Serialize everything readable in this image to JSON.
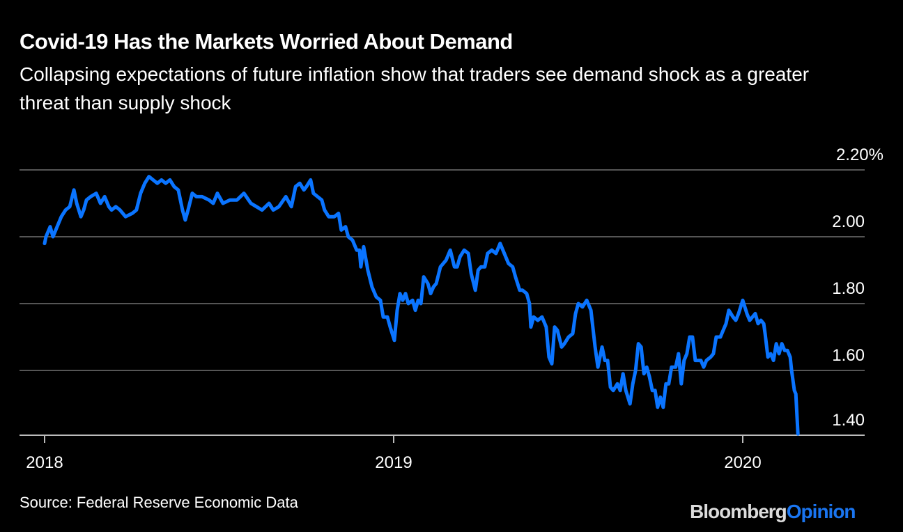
{
  "title": "Covid-19 Has the Markets Worried About Demand",
  "subtitle": "Collapsing expectations of future inflation show that traders see demand shock as a greater threat than supply shock",
  "source": "Source: Federal Reserve Economic Data",
  "logo": {
    "part1": "Bloomberg",
    "part2": "Opinion"
  },
  "colors": {
    "line": "#0a74ff",
    "grid": "#555555",
    "background": "#000000",
    "logo_accent": "#1a75f0"
  },
  "chart_data": {
    "type": "line",
    "title": "Covid-19 Has the Markets Worried About Demand",
    "xlabel": "",
    "ylabel": "",
    "xlim": [
      2017.93,
      2020.35
    ],
    "ylim": [
      1.4,
      2.2
    ],
    "grid": true,
    "legend": "none",
    "x_ticks": [
      {
        "value": 2018,
        "label": "2018"
      },
      {
        "value": 2019,
        "label": "2019"
      },
      {
        "value": 2020,
        "label": "2020"
      }
    ],
    "y_ticks": [
      {
        "value": 2.2,
        "label": "2.20%"
      },
      {
        "value": 2.0,
        "label": "2.00"
      },
      {
        "value": 1.8,
        "label": "1.80"
      },
      {
        "value": 1.6,
        "label": "1.60"
      },
      {
        "value": 1.4,
        "label": "1.40"
      }
    ],
    "series": [
      {
        "x": [
          2018.0,
          2018.004,
          2018.016,
          2018.024,
          2018.036,
          2018.048,
          2018.06,
          2018.072,
          2018.084,
          2018.092,
          2018.104,
          2018.112,
          2018.12,
          2018.132,
          2018.148,
          2018.16,
          2018.172,
          2018.184,
          2018.192,
          2018.204,
          2018.216,
          2018.232,
          2018.251,
          2018.263,
          2018.275,
          2018.287,
          2018.299,
          2018.311,
          2018.323,
          2018.335,
          2018.347,
          2018.359,
          2018.371,
          2018.383,
          2018.395,
          2018.403,
          2018.411,
          2018.423,
          2018.435,
          2018.451,
          2018.471,
          2018.483,
          2018.495,
          2018.511,
          2018.531,
          2018.551,
          2018.571,
          2018.591,
          2018.607,
          2018.623,
          2018.643,
          2018.655,
          2018.671,
          2018.691,
          2018.707,
          2018.719,
          2018.731,
          2018.743,
          2018.75,
          2018.762,
          2018.77,
          2018.782,
          2018.794,
          2018.802,
          2018.814,
          2018.83,
          2018.842,
          2018.85,
          2018.862,
          2018.87,
          2018.882,
          2018.894,
          2018.902,
          2018.906,
          2018.914,
          2018.926,
          2018.938,
          2018.95,
          2018.962,
          2018.97,
          2018.982,
          2018.99,
          2019.002,
          2019.01,
          2019.018,
          2019.026,
          2019.034,
          2019.042,
          2019.054,
          2019.062,
          2019.07,
          2019.078,
          2019.086,
          2019.098,
          2019.106,
          2019.114,
          2019.122,
          2019.134,
          2019.15,
          2019.162,
          2019.174,
          2019.182,
          2019.19,
          2019.202,
          2019.214,
          2019.222,
          2019.234,
          2019.242,
          2019.25,
          2019.261,
          2019.269,
          2019.281,
          2019.293,
          2019.305,
          2019.317,
          2019.329,
          2019.341,
          2019.349,
          2019.361,
          2019.369,
          2019.381,
          2019.389,
          2019.393,
          2019.401,
          2019.413,
          2019.425,
          2019.437,
          2019.445,
          2019.453,
          2019.461,
          2019.469,
          2019.481,
          2019.489,
          2019.501,
          2019.513,
          2019.521,
          2019.529,
          2019.541,
          2019.553,
          2019.565,
          2019.577,
          2019.585,
          2019.597,
          2019.605,
          2019.613,
          2019.621,
          2019.629,
          2019.641,
          2019.649,
          2019.657,
          2019.665,
          2019.677,
          2019.685,
          2019.693,
          2019.701,
          2019.709,
          2019.717,
          2019.725,
          2019.733,
          2019.741,
          2019.749,
          2019.756,
          2019.764,
          2019.772,
          2019.78,
          2019.788,
          2019.796,
          2019.808,
          2019.816,
          2019.824,
          2019.832,
          2019.84,
          2019.848,
          2019.856,
          2019.864,
          2019.872,
          2019.88,
          2019.888,
          2019.896,
          2019.908,
          2019.916,
          2019.924,
          2019.936,
          2019.944,
          2019.952,
          2019.96,
          2019.972,
          2019.98,
          2019.988,
          2020.0,
          2020.012,
          2020.02,
          2020.028,
          2020.036,
          2020.044,
          2020.052,
          2020.06,
          2020.064,
          2020.072,
          2020.08,
          2020.088,
          2020.096,
          2020.104,
          2020.112,
          2020.12,
          2020.128,
          2020.136,
          2020.14,
          2020.148,
          2020.152,
          2020.158
        ],
        "y": [
          1.98,
          2.0,
          2.03,
          2.0,
          2.03,
          2.06,
          2.08,
          2.09,
          2.14,
          2.1,
          2.06,
          2.08,
          2.11,
          2.12,
          2.13,
          2.1,
          2.12,
          2.09,
          2.08,
          2.09,
          2.08,
          2.06,
          2.07,
          2.08,
          2.13,
          2.16,
          2.18,
          2.17,
          2.16,
          2.17,
          2.16,
          2.17,
          2.15,
          2.14,
          2.08,
          2.05,
          2.08,
          2.13,
          2.12,
          2.12,
          2.11,
          2.1,
          2.13,
          2.1,
          2.11,
          2.11,
          2.13,
          2.1,
          2.09,
          2.08,
          2.1,
          2.08,
          2.09,
          2.12,
          2.09,
          2.15,
          2.16,
          2.14,
          2.15,
          2.17,
          2.13,
          2.12,
          2.11,
          2.08,
          2.06,
          2.06,
          2.07,
          2.02,
          2.03,
          2.0,
          1.99,
          1.96,
          1.96,
          1.91,
          1.97,
          1.9,
          1.85,
          1.82,
          1.81,
          1.76,
          1.76,
          1.73,
          1.69,
          1.78,
          1.83,
          1.81,
          1.83,
          1.8,
          1.81,
          1.78,
          1.81,
          1.8,
          1.88,
          1.86,
          1.83,
          1.85,
          1.86,
          1.91,
          1.93,
          1.96,
          1.91,
          1.91,
          1.94,
          1.96,
          1.95,
          1.89,
          1.84,
          1.9,
          1.91,
          1.91,
          1.95,
          1.96,
          1.95,
          1.98,
          1.95,
          1.92,
          1.91,
          1.88,
          1.84,
          1.84,
          1.83,
          1.8,
          1.73,
          1.76,
          1.75,
          1.76,
          1.73,
          1.64,
          1.62,
          1.73,
          1.72,
          1.67,
          1.68,
          1.7,
          1.71,
          1.77,
          1.8,
          1.79,
          1.81,
          1.78,
          1.67,
          1.61,
          1.67,
          1.63,
          1.63,
          1.55,
          1.54,
          1.56,
          1.54,
          1.59,
          1.54,
          1.5,
          1.56,
          1.6,
          1.68,
          1.67,
          1.59,
          1.61,
          1.58,
          1.54,
          1.54,
          1.49,
          1.52,
          1.49,
          1.56,
          1.56,
          1.61,
          1.61,
          1.65,
          1.56,
          1.63,
          1.65,
          1.7,
          1.7,
          1.63,
          1.63,
          1.63,
          1.61,
          1.63,
          1.64,
          1.65,
          1.7,
          1.7,
          1.72,
          1.74,
          1.78,
          1.76,
          1.75,
          1.77,
          1.81,
          1.77,
          1.75,
          1.76,
          1.77,
          1.74,
          1.75,
          1.74,
          1.71,
          1.64,
          1.65,
          1.63,
          1.68,
          1.65,
          1.68,
          1.66,
          1.66,
          1.64,
          1.6,
          1.54,
          1.53,
          1.41
        ]
      }
    ]
  }
}
